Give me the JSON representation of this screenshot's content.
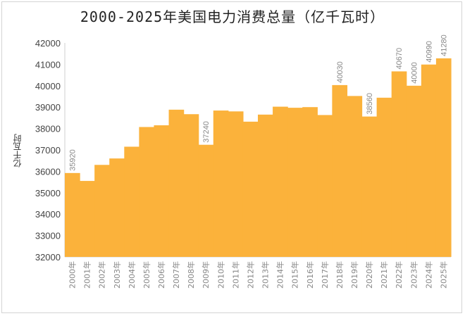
{
  "title": "2000-2025年美国电力消费总量（亿千瓦时）",
  "chart_data": {
    "type": "area",
    "title": "2000-2025年美国电力消费总量（亿千瓦时）",
    "ylabel": "亿千瓦时",
    "xlabel": "",
    "ylim": [
      32000,
      42000
    ],
    "yticks": [
      32000,
      33000,
      34000,
      35000,
      36000,
      37000,
      38000,
      39000,
      40000,
      41000,
      42000
    ],
    "categories": [
      "2000年",
      "2001年",
      "2002年",
      "2003年",
      "2004年",
      "2005年",
      "2006年",
      "2007年",
      "2008年",
      "2009年",
      "2010年",
      "2011年",
      "2012年",
      "2013年",
      "2014年",
      "2015年",
      "2016年",
      "2017年",
      "2018年",
      "2019年",
      "2020年",
      "2021年",
      "2022年",
      "2023年",
      "2024年",
      "2025年"
    ],
    "values": [
      35920,
      35550,
      36300,
      36600,
      37150,
      38070,
      38150,
      38880,
      38670,
      37240,
      38840,
      38800,
      38320,
      38650,
      39020,
      38970,
      39000,
      38630,
      40030,
      39520,
      38560,
      39440,
      40670,
      40000,
      40990,
      41280
    ],
    "labels": [
      {
        "index": 0,
        "text": "35920"
      },
      {
        "index": 9,
        "text": "37240"
      },
      {
        "index": 18,
        "text": "40030"
      },
      {
        "index": 20,
        "text": "38560"
      },
      {
        "index": 22,
        "text": "40670"
      },
      {
        "index": 23,
        "text": "40000"
      },
      {
        "index": 24,
        "text": "40990"
      },
      {
        "index": 25,
        "text": "41280"
      }
    ],
    "grid": false,
    "color": "#FBB23B"
  }
}
